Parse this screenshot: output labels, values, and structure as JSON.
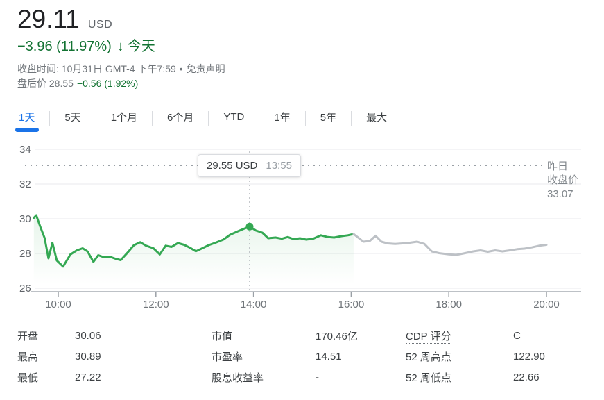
{
  "quote": {
    "price": "29.11",
    "currency": "USD",
    "change": "−3.96 (11.97%)",
    "change_arrow": "↓",
    "change_period": "今天",
    "closed_info": "收盘时间: 10月31日 GMT-4 下午7:59",
    "separator": "•",
    "disclaimer": "免责声明",
    "after_hours_label": "盘后价",
    "after_hours_price": "28.55",
    "after_hours_change": "−0.56 (1.92%)"
  },
  "tabs": {
    "items": [
      {
        "id": "1d",
        "label": "1天",
        "active": true
      },
      {
        "id": "5d",
        "label": "5天",
        "active": false
      },
      {
        "id": "1m",
        "label": "1个月",
        "active": false
      },
      {
        "id": "6m",
        "label": "6个月",
        "active": false
      },
      {
        "id": "ytd",
        "label": "YTD",
        "active": false
      },
      {
        "id": "1y",
        "label": "1年",
        "active": false
      },
      {
        "id": "5y",
        "label": "5年",
        "active": false
      },
      {
        "id": "max",
        "label": "最大",
        "active": false
      }
    ]
  },
  "chart_data": {
    "type": "line",
    "y_ticks": [
      26,
      28,
      30,
      32,
      34
    ],
    "ylim": [
      25.8,
      34.6
    ],
    "x_ticks": [
      "10:00",
      "12:00",
      "14:00",
      "16:00",
      "18:00",
      "20:00"
    ],
    "x_tick_hours": [
      10,
      12,
      14,
      16,
      18,
      20
    ],
    "xlim_hours": [
      9.5,
      20.0
    ],
    "grid": true,
    "legend_position": "none",
    "prev_close": {
      "value": 33.07,
      "label_lines": [
        "昨日",
        "收盘价",
        "33.07"
      ]
    },
    "tooltip": {
      "price_label": "29.55 USD",
      "time_label": "13:55",
      "t": 13.92,
      "value": 29.55
    },
    "series": [
      {
        "name": "regular-session",
        "color": "#34a853",
        "points": [
          [
            9.5,
            30.05
          ],
          [
            9.55,
            30.2
          ],
          [
            9.63,
            29.55
          ],
          [
            9.72,
            28.9
          ],
          [
            9.8,
            27.72
          ],
          [
            9.88,
            28.62
          ],
          [
            9.97,
            27.6
          ],
          [
            10.1,
            27.25
          ],
          [
            10.25,
            27.95
          ],
          [
            10.38,
            28.18
          ],
          [
            10.5,
            28.3
          ],
          [
            10.6,
            28.12
          ],
          [
            10.72,
            27.52
          ],
          [
            10.82,
            27.9
          ],
          [
            10.92,
            27.8
          ],
          [
            11.05,
            27.82
          ],
          [
            11.17,
            27.7
          ],
          [
            11.28,
            27.62
          ],
          [
            11.42,
            28.05
          ],
          [
            11.55,
            28.48
          ],
          [
            11.68,
            28.65
          ],
          [
            11.8,
            28.45
          ],
          [
            11.95,
            28.3
          ],
          [
            12.08,
            27.95
          ],
          [
            12.2,
            28.45
          ],
          [
            12.32,
            28.38
          ],
          [
            12.45,
            28.6
          ],
          [
            12.58,
            28.5
          ],
          [
            12.7,
            28.33
          ],
          [
            12.82,
            28.13
          ],
          [
            12.95,
            28.3
          ],
          [
            13.08,
            28.48
          ],
          [
            13.22,
            28.62
          ],
          [
            13.38,
            28.8
          ],
          [
            13.52,
            29.08
          ],
          [
            13.68,
            29.28
          ],
          [
            13.8,
            29.42
          ],
          [
            13.92,
            29.55
          ],
          [
            14.05,
            29.32
          ],
          [
            14.18,
            29.2
          ],
          [
            14.3,
            28.88
          ],
          [
            14.45,
            28.92
          ],
          [
            14.58,
            28.85
          ],
          [
            14.7,
            28.95
          ],
          [
            14.83,
            28.82
          ],
          [
            14.95,
            28.88
          ],
          [
            15.08,
            28.8
          ],
          [
            15.22,
            28.85
          ],
          [
            15.38,
            29.05
          ],
          [
            15.52,
            28.95
          ],
          [
            15.65,
            28.92
          ],
          [
            15.8,
            29.0
          ],
          [
            15.93,
            29.05
          ],
          [
            16.05,
            29.12
          ]
        ]
      },
      {
        "name": "after-hours",
        "color": "#bdc1c6",
        "points": [
          [
            16.05,
            29.12
          ],
          [
            16.13,
            28.95
          ],
          [
            16.25,
            28.68
          ],
          [
            16.38,
            28.72
          ],
          [
            16.5,
            29.02
          ],
          [
            16.62,
            28.68
          ],
          [
            16.75,
            28.58
          ],
          [
            16.9,
            28.55
          ],
          [
            17.05,
            28.58
          ],
          [
            17.2,
            28.62
          ],
          [
            17.35,
            28.68
          ],
          [
            17.5,
            28.55
          ],
          [
            17.65,
            28.12
          ],
          [
            17.8,
            28.02
          ],
          [
            18.0,
            27.95
          ],
          [
            18.15,
            27.92
          ],
          [
            18.3,
            28.0
          ],
          [
            18.5,
            28.12
          ],
          [
            18.65,
            28.18
          ],
          [
            18.8,
            28.1
          ],
          [
            18.95,
            28.18
          ],
          [
            19.1,
            28.12
          ],
          [
            19.25,
            28.18
          ],
          [
            19.4,
            28.25
          ],
          [
            19.55,
            28.28
          ],
          [
            19.7,
            28.35
          ],
          [
            19.85,
            28.45
          ],
          [
            20.0,
            28.5
          ]
        ]
      }
    ]
  },
  "stats": {
    "columns": [
      {
        "items": [
          {
            "label": "开盘",
            "value": "30.06"
          },
          {
            "label": "最高",
            "value": "30.89"
          },
          {
            "label": "最低",
            "value": "27.22"
          }
        ]
      },
      {
        "items": [
          {
            "label": "市值",
            "value": "170.46亿"
          },
          {
            "label": "市盈率",
            "value": "14.51"
          },
          {
            "label": "股息收益率",
            "value": "-"
          }
        ]
      },
      {
        "items": [
          {
            "label": "CDP 评分",
            "value": "C"
          },
          {
            "label": "52 周高点",
            "value": "122.90"
          },
          {
            "label": "52 周低点",
            "value": "22.66"
          }
        ]
      }
    ]
  },
  "colors": {
    "accent_blue": "#1a73e8",
    "text_green": "#137333",
    "line_green": "#34a853",
    "line_gray": "#bdc1c6",
    "grid": "#e8eaed",
    "axis_text": "#70757a"
  }
}
